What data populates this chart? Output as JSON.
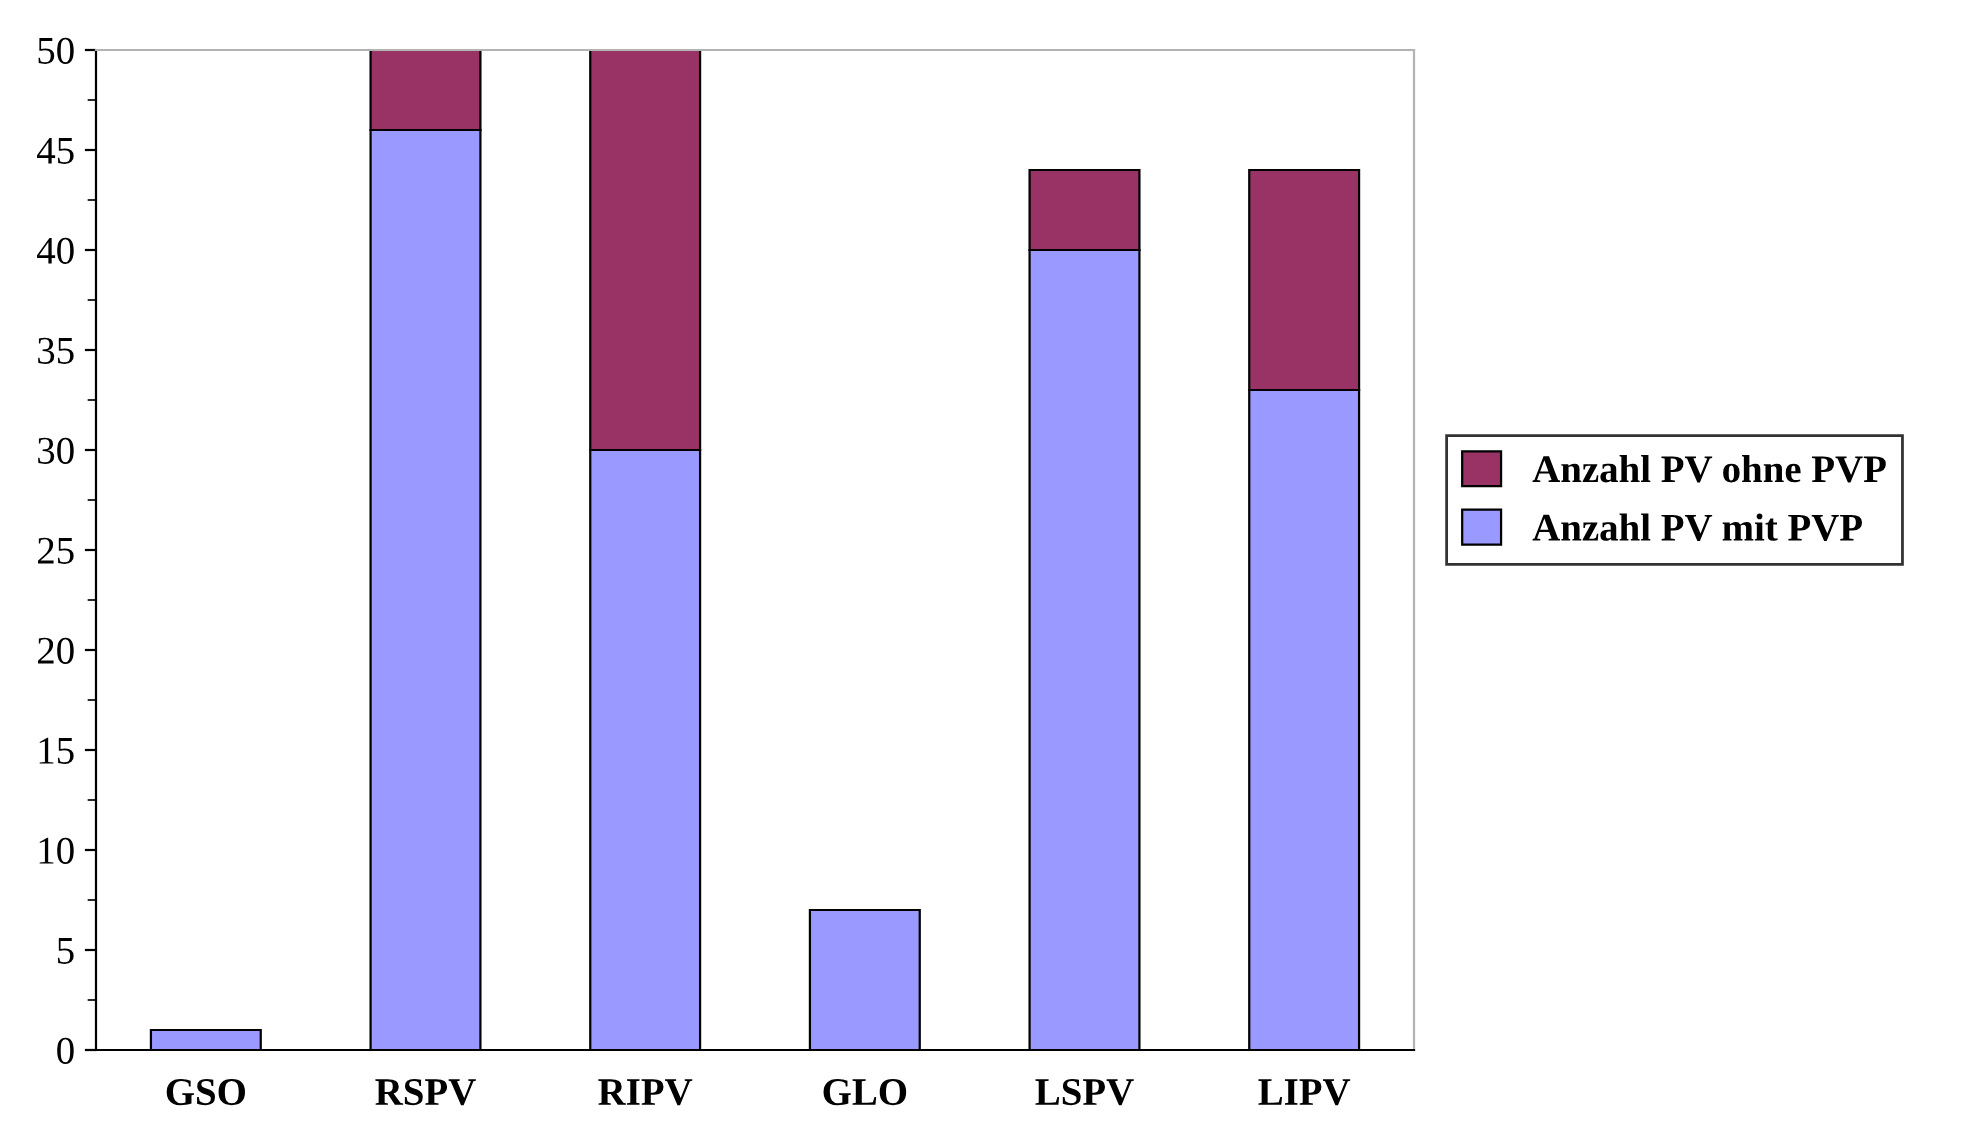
{
  "chart_data": {
    "type": "bar",
    "stacked": true,
    "categories": [
      "GSO",
      "RSPV",
      "RIPV",
      "GLO",
      "LSPV",
      "LIPV"
    ],
    "series": [
      {
        "name": "Anzahl PV mit PVP",
        "color": "#9999ff",
        "values": [
          1,
          46,
          30,
          7,
          40,
          33
        ]
      },
      {
        "name": "Anzahl PV ohne PVP",
        "color": "#993366",
        "values": [
          null,
          4,
          20,
          null,
          4,
          11
        ]
      }
    ],
    "ylim": [
      0,
      50
    ],
    "yticks": [
      0,
      5,
      10,
      15,
      20,
      25,
      30,
      35,
      40,
      45,
      50
    ],
    "grid": false,
    "legend": "right"
  }
}
